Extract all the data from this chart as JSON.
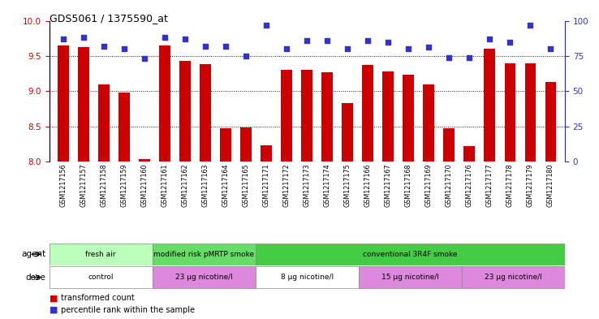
{
  "title": "GDS5061 / 1375590_at",
  "samples": [
    "GSM1217156",
    "GSM1217157",
    "GSM1217158",
    "GSM1217159",
    "GSM1217160",
    "GSM1217161",
    "GSM1217162",
    "GSM1217163",
    "GSM1217164",
    "GSM1217165",
    "GSM1217171",
    "GSM1217172",
    "GSM1217173",
    "GSM1217174",
    "GSM1217175",
    "GSM1217166",
    "GSM1217167",
    "GSM1217168",
    "GSM1217169",
    "GSM1217170",
    "GSM1217176",
    "GSM1217177",
    "GSM1217178",
    "GSM1217179",
    "GSM1217180"
  ],
  "transformed_counts": [
    9.65,
    9.63,
    9.1,
    8.98,
    8.03,
    9.65,
    9.43,
    9.38,
    8.47,
    8.48,
    8.23,
    9.3,
    9.3,
    9.27,
    8.83,
    9.37,
    9.28,
    9.23,
    9.1,
    8.47,
    8.22,
    9.6,
    9.4,
    9.4,
    9.13
  ],
  "percentile_ranks": [
    87,
    88,
    82,
    80,
    73,
    88,
    87,
    82,
    82,
    75,
    97,
    80,
    86,
    86,
    80,
    86,
    85,
    80,
    81,
    74,
    74,
    87,
    85,
    97,
    80
  ],
  "ylim_left": [
    8.0,
    10.0
  ],
  "ylim_right": [
    0,
    100
  ],
  "yticks_left": [
    8.0,
    8.5,
    9.0,
    9.5,
    10.0
  ],
  "yticks_right": [
    0,
    25,
    50,
    75,
    100
  ],
  "bar_color": "#cc0000",
  "dot_color": "#3333cc",
  "agent_groups": [
    {
      "label": "fresh air",
      "start": 0,
      "end": 5,
      "color": "#bbffbb"
    },
    {
      "label": "modified risk pMRTP smoke",
      "start": 5,
      "end": 10,
      "color": "#66dd66"
    },
    {
      "label": "conventional 3R4F smoke",
      "start": 10,
      "end": 25,
      "color": "#44cc44"
    }
  ],
  "dose_groups": [
    {
      "label": "control",
      "start": 0,
      "end": 5,
      "color": "#ffffff"
    },
    {
      "label": "23 μg nicotine/l",
      "start": 5,
      "end": 10,
      "color": "#dd88dd"
    },
    {
      "label": "8 μg nicotine/l",
      "start": 10,
      "end": 15,
      "color": "#ffffff"
    },
    {
      "label": "15 μg nicotine/l",
      "start": 15,
      "end": 20,
      "color": "#dd88dd"
    },
    {
      "label": "23 μg nicotine/l",
      "start": 20,
      "end": 25,
      "color": "#dd88dd"
    }
  ]
}
